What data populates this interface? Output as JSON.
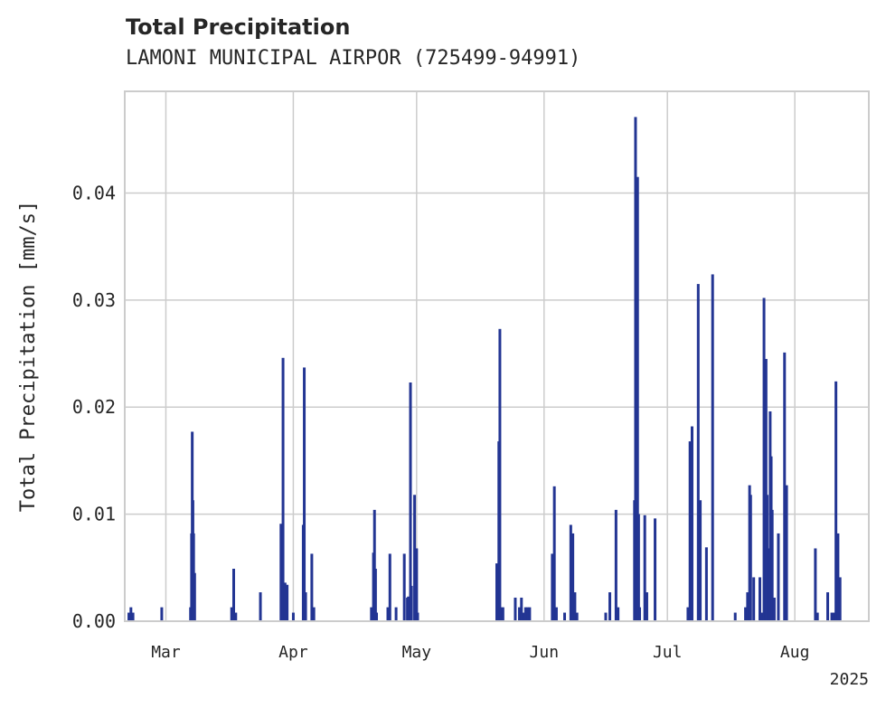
{
  "chart_data": {
    "type": "bar",
    "title": "Total Precipitation",
    "subtitle": "LAMONI MUNICIPAL AIRPOR (725499-94991)",
    "ylabel": "Total Precipitation [mm/s]",
    "xlabel": "",
    "x_year_label": "2025",
    "ylim": [
      0,
      0.0495
    ],
    "xlim": [
      "2025-02-19",
      "2025-08-19"
    ],
    "grid": true,
    "y_ticks": [
      {
        "value": 0,
        "label": "0.00"
      },
      {
        "value": 0.01,
        "label": "0.01"
      },
      {
        "value": 0.02,
        "label": "0.02"
      },
      {
        "value": 0.03,
        "label": "0.03"
      },
      {
        "value": 0.04,
        "label": "0.04"
      }
    ],
    "x_ticks": [
      {
        "date": "2025-03-01",
        "label": "Mar"
      },
      {
        "date": "2025-04-01",
        "label": "Apr"
      },
      {
        "date": "2025-05-01",
        "label": "May"
      },
      {
        "date": "2025-06-01",
        "label": "Jun"
      },
      {
        "date": "2025-07-01",
        "label": "Jul"
      },
      {
        "date": "2025-08-01",
        "label": "Aug"
      }
    ],
    "series": [
      {
        "color": "#233593",
        "points": [
          [
            "2025-02-20",
            0.0008
          ],
          [
            "2025-02-20T12:00",
            0.0013
          ],
          [
            "2025-02-21",
            0.0008
          ],
          [
            "2025-02-28",
            0.0013
          ],
          [
            "2025-03-07",
            0.0013
          ],
          [
            "2025-03-07T06:00",
            0.0082
          ],
          [
            "2025-03-07T10:00",
            0.0177
          ],
          [
            "2025-03-07T14:00",
            0.0113
          ],
          [
            "2025-03-07T18:00",
            0.0082
          ],
          [
            "2025-03-08",
            0.0045
          ],
          [
            "2025-03-17",
            0.0013
          ],
          [
            "2025-03-17T12:00",
            0.0049
          ],
          [
            "2025-03-18",
            0.0008
          ],
          [
            "2025-03-24",
            0.0027
          ],
          [
            "2025-03-29",
            0.0091
          ],
          [
            "2025-03-29T12:00",
            0.0246
          ],
          [
            "2025-03-30",
            0.0036
          ],
          [
            "2025-03-30T12:00",
            0.0034
          ],
          [
            "2025-04-01",
            0.0008
          ],
          [
            "2025-04-03T10:00",
            0.009
          ],
          [
            "2025-04-03T16:00",
            0.0237
          ],
          [
            "2025-04-04",
            0.0027
          ],
          [
            "2025-04-05T12:00",
            0.0063
          ],
          [
            "2025-04-06",
            0.0013
          ],
          [
            "2025-04-20",
            0.0013
          ],
          [
            "2025-04-20T12:00",
            0.0064
          ],
          [
            "2025-04-20T18:00",
            0.0104
          ],
          [
            "2025-04-21",
            0.0049
          ],
          [
            "2025-04-21T06:00",
            0.0008
          ],
          [
            "2025-04-24",
            0.0013
          ],
          [
            "2025-04-24T12:00",
            0.0063
          ],
          [
            "2025-04-26",
            0.0013
          ],
          [
            "2025-04-28",
            0.0063
          ],
          [
            "2025-04-28T18:00",
            0.0022
          ],
          [
            "2025-04-29",
            0.0023
          ],
          [
            "2025-04-29T12:00",
            0.0223
          ],
          [
            "2025-04-29T18:00",
            0.0033
          ],
          [
            "2025-04-30T12:00",
            0.0118
          ],
          [
            "2025-05-01",
            0.0068
          ],
          [
            "2025-05-01T06:00",
            0.0008
          ],
          [
            "2025-05-20T12:00",
            0.0054
          ],
          [
            "2025-05-21",
            0.0168
          ],
          [
            "2025-05-21T06:00",
            0.0273
          ],
          [
            "2025-05-21T12:00",
            0.0013
          ],
          [
            "2025-05-22",
            0.0013
          ],
          [
            "2025-05-25",
            0.0022
          ],
          [
            "2025-05-26",
            0.0013
          ],
          [
            "2025-05-26T12:00",
            0.0022
          ],
          [
            "2025-05-27",
            0.0008
          ],
          [
            "2025-05-27T12:00",
            0.0013
          ],
          [
            "2025-05-28",
            0.0013
          ],
          [
            "2025-05-28T12:00",
            0.0013
          ],
          [
            "2025-06-03",
            0.0063
          ],
          [
            "2025-06-03T12:00",
            0.0126
          ],
          [
            "2025-06-04",
            0.0013
          ],
          [
            "2025-06-06",
            0.0008
          ],
          [
            "2025-06-07T12:00",
            0.009
          ],
          [
            "2025-06-08",
            0.0082
          ],
          [
            "2025-06-08T12:00",
            0.0027
          ],
          [
            "2025-06-09",
            0.0008
          ],
          [
            "2025-06-16",
            0.0008
          ],
          [
            "2025-06-17",
            0.0027
          ],
          [
            "2025-06-18T12:00",
            0.0104
          ],
          [
            "2025-06-19",
            0.0013
          ],
          [
            "2025-06-23",
            0.0113
          ],
          [
            "2025-06-23T06:00",
            0.0471
          ],
          [
            "2025-06-23T12:00",
            0.0404
          ],
          [
            "2025-06-23T18:00",
            0.0415
          ],
          [
            "2025-06-24",
            0.01
          ],
          [
            "2025-06-24T06:00",
            0.0013
          ],
          [
            "2025-06-25T12:00",
            0.0099
          ],
          [
            "2025-06-26",
            0.0027
          ],
          [
            "2025-06-28",
            0.0096
          ],
          [
            "2025-07-06",
            0.0013
          ],
          [
            "2025-07-06T12:00",
            0.0168
          ],
          [
            "2025-07-07",
            0.0182
          ],
          [
            "2025-07-08T12:00",
            0.0315
          ],
          [
            "2025-07-09",
            0.0113
          ],
          [
            "2025-07-10T12:00",
            0.0069
          ],
          [
            "2025-07-12",
            0.0324
          ],
          [
            "2025-07-17T12:00",
            0.0008
          ],
          [
            "2025-07-20",
            0.0013
          ],
          [
            "2025-07-20T12:00",
            0.0027
          ],
          [
            "2025-07-21",
            0.0127
          ],
          [
            "2025-07-21T06:00",
            0.0118
          ],
          [
            "2025-07-22",
            0.0041
          ],
          [
            "2025-07-23T12:00",
            0.0041
          ],
          [
            "2025-07-24",
            0.0008
          ],
          [
            "2025-07-24T12:00",
            0.0302
          ],
          [
            "2025-07-25",
            0.0245
          ],
          [
            "2025-07-25T06:00",
            0.0118
          ],
          [
            "2025-07-25T12:00",
            0.0068
          ],
          [
            "2025-07-26",
            0.0196
          ],
          [
            "2025-07-26T06:00",
            0.0154
          ],
          [
            "2025-07-26T12:00",
            0.0104
          ],
          [
            "2025-07-27",
            0.0022
          ],
          [
            "2025-07-28",
            0.0082
          ],
          [
            "2025-07-29T12:00",
            0.0251
          ],
          [
            "2025-07-30",
            0.0127
          ],
          [
            "2025-08-06",
            0.0068
          ],
          [
            "2025-08-06T12:00",
            0.0008
          ],
          [
            "2025-08-09",
            0.0027
          ],
          [
            "2025-08-10",
            0.0008
          ],
          [
            "2025-08-10T12:00",
            0.0008
          ],
          [
            "2025-08-11",
            0.0224
          ],
          [
            "2025-08-11T12:00",
            0.0082
          ],
          [
            "2025-08-12",
            0.0041
          ]
        ]
      }
    ]
  }
}
